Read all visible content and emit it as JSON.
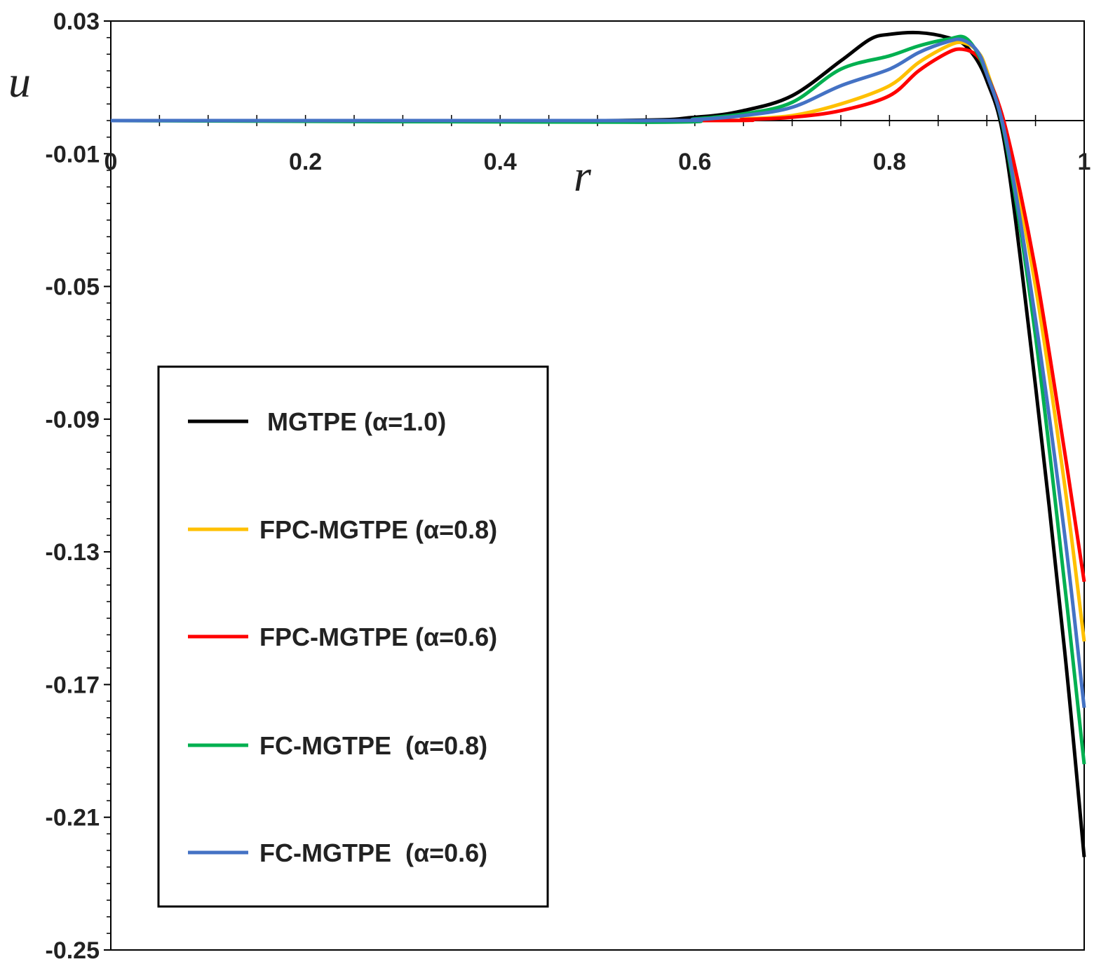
{
  "chart_data": {
    "type": "line",
    "title": "",
    "xlabel": "r",
    "ylabel": "u",
    "xlim": [
      0,
      1
    ],
    "ylim": [
      -0.25,
      0.03
    ],
    "xticks": [
      0,
      0.2,
      0.4,
      0.6,
      0.8,
      1
    ],
    "xtick_labels": [
      "0",
      "0.2",
      "0.4",
      "0.6",
      "0.8",
      "1"
    ],
    "yticks": [
      0.03,
      -0.01,
      -0.05,
      -0.09,
      -0.13,
      -0.17,
      -0.21,
      -0.25
    ],
    "ytick_labels": [
      "0.03",
      "-0.01",
      "-0.05",
      "-0.09",
      "-0.13",
      "-0.17",
      "-0.21",
      "-0.25"
    ],
    "legend_position": "lower-left",
    "grid": false,
    "series": [
      {
        "name": "MGTPE (α=1.0)",
        "color": "#000000",
        "x": [
          0,
          0.5,
          0.6,
          0.65,
          0.7,
          0.75,
          0.78,
          0.8,
          0.83,
          0.86,
          0.88,
          0.9,
          0.92,
          0.95,
          0.98,
          1.0
        ],
        "y": [
          0,
          0,
          0.001,
          0.003,
          0.0075,
          0.018,
          0.0245,
          0.026,
          0.0265,
          0.025,
          0.022,
          0.012,
          -0.01,
          -0.08,
          -0.16,
          -0.222
        ]
      },
      {
        "name": "FPC-MGTPE (α=0.8)",
        "color": "#FFC000",
        "x": [
          0,
          0.6,
          0.65,
          0.7,
          0.75,
          0.8,
          0.83,
          0.86,
          0.875,
          0.89,
          0.9,
          0.92,
          0.95,
          0.98,
          1.0
        ],
        "y": [
          0,
          0,
          0.0005,
          0.0015,
          0.005,
          0.0105,
          0.0175,
          0.0225,
          0.0235,
          0.021,
          0.015,
          -0.005,
          -0.05,
          -0.11,
          -0.157
        ]
      },
      {
        "name": "FPC-MGTPE (α=0.6)",
        "color": "#FF0000",
        "x": [
          0,
          0.6,
          0.65,
          0.7,
          0.75,
          0.8,
          0.83,
          0.86,
          0.875,
          0.89,
          0.9,
          0.92,
          0.95,
          0.98,
          1.0
        ],
        "y": [
          0,
          0,
          0.0003,
          0.001,
          0.003,
          0.0075,
          0.015,
          0.0205,
          0.0215,
          0.0195,
          0.014,
          -0.003,
          -0.045,
          -0.1,
          -0.139
        ]
      },
      {
        "name": "FC-MGTPE  (α=0.8)",
        "color": "#00B050",
        "x": [
          0,
          0.55,
          0.6,
          0.65,
          0.7,
          0.75,
          0.8,
          0.83,
          0.86,
          0.88,
          0.9,
          0.92,
          0.95,
          0.98,
          1.0
        ],
        "y": [
          0,
          -0.0005,
          0.0005,
          0.002,
          0.0055,
          0.0155,
          0.0195,
          0.0225,
          0.0245,
          0.0245,
          0.014,
          -0.007,
          -0.065,
          -0.14,
          -0.194
        ]
      },
      {
        "name": "FC-MGTPE  (α=0.6)",
        "color": "#4472C4",
        "x": [
          0,
          0.55,
          0.6,
          0.65,
          0.7,
          0.75,
          0.8,
          0.83,
          0.86,
          0.875,
          0.89,
          0.9,
          0.92,
          0.95,
          0.98,
          1.0
        ],
        "y": [
          0,
          0,
          0.0003,
          0.0015,
          0.004,
          0.0105,
          0.0155,
          0.0205,
          0.0238,
          0.0243,
          0.021,
          0.014,
          -0.006,
          -0.06,
          -0.125,
          -0.177
        ]
      }
    ]
  }
}
